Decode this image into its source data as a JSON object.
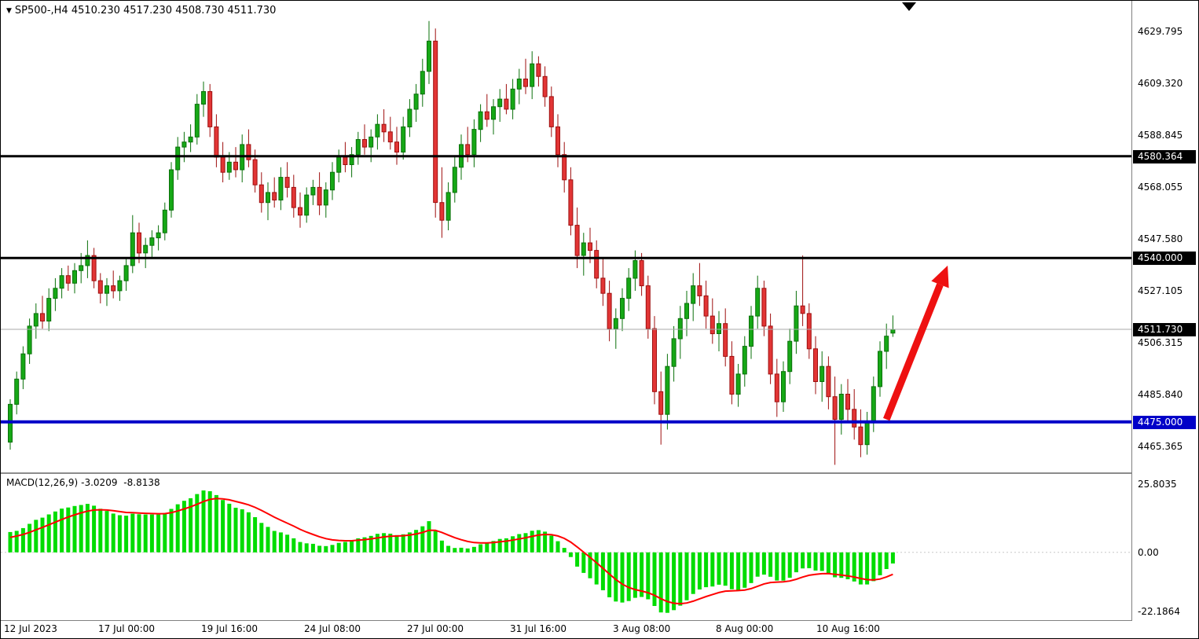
{
  "window": {
    "dropdown_marker": "▼",
    "symbol_timeframe": "SP500-,H4",
    "open": "4510.230",
    "high": "4517.230",
    "low": "4508.730",
    "close": "4511.730"
  },
  "macd_panel": {
    "label": "MACD(12,26,9)",
    "main_value": "-3.0209",
    "signal_value": "-8.8138"
  },
  "colors": {
    "bull": "#16a816",
    "bull_edge": "#0a700a",
    "bear": "#e23535",
    "bear_edge": "#9e0f0f",
    "hline_black": "#000000",
    "support_blue": "#0000c8",
    "current_price_line": "#a8a8a8",
    "macd_hist": "#00dc00",
    "macd_signal": "#ff0000",
    "arrow_red": "#ee1111",
    "badge_current_bg": "#000000"
  },
  "chart_data": {
    "type": "candlestick",
    "symbol": "SP500-",
    "timeframe": "H4",
    "ohlc_current": [
      4510.23,
      4517.23,
      4508.73,
      4511.73
    ],
    "main_pane": {
      "ylim": [
        4455,
        4642
      ],
      "grid_labels": [
        4629.795,
        4609.32,
        4588.845,
        4568.055,
        4547.58,
        4527.105,
        4506.315,
        4485.84,
        4465.365
      ],
      "current_price": 4511.73,
      "hlines": [
        {
          "name": "resistance-line-4580",
          "price": 4580.364,
          "color": "#000000",
          "width": 3
        },
        {
          "name": "resistance-line-4540",
          "price": 4540.0,
          "color": "#000000",
          "width": 3
        },
        {
          "name": "support-line-4475",
          "price": 4475.0,
          "color": "#0000c8",
          "width": 4
        }
      ],
      "candles": [
        [
          4467,
          4484,
          4464,
          4482
        ],
        [
          4482,
          4495,
          4478,
          4492
        ],
        [
          4492,
          4505,
          4488,
          4502
        ],
        [
          4502,
          4516,
          4498,
          4513
        ],
        [
          4513,
          4522,
          4508,
          4518
        ],
        [
          4518,
          4525,
          4512,
          4515
        ],
        [
          4515,
          4528,
          4511,
          4524
        ],
        [
          4524,
          4532,
          4519,
          4528
        ],
        [
          4528,
          4536,
          4524,
          4533
        ],
        [
          4533,
          4537,
          4527,
          4530
        ],
        [
          4530,
          4538,
          4526,
          4535
        ],
        [
          4535,
          4542,
          4530,
          4537
        ],
        [
          4537,
          4547,
          4532,
          4541
        ],
        [
          4541,
          4544,
          4528,
          4531
        ],
        [
          4531,
          4534,
          4522,
          4526
        ],
        [
          4526,
          4532,
          4521,
          4529
        ],
        [
          4529,
          4535,
          4524,
          4527
        ],
        [
          4527,
          4533,
          4523,
          4531
        ],
        [
          4531,
          4540,
          4527,
          4537
        ],
        [
          4537,
          4557,
          4534,
          4550
        ],
        [
          4550,
          4554,
          4538,
          4542
        ],
        [
          4542,
          4548,
          4536,
          4545
        ],
        [
          4545,
          4551,
          4540,
          4548
        ],
        [
          4548,
          4553,
          4543,
          4550
        ],
        [
          4550,
          4562,
          4547,
          4559
        ],
        [
          4559,
          4578,
          4556,
          4575
        ],
        [
          4575,
          4588,
          4571,
          4584
        ],
        [
          4584,
          4590,
          4578,
          4586
        ],
        [
          4586,
          4593,
          4582,
          4588
        ],
        [
          4588,
          4605,
          4585,
          4601
        ],
        [
          4601,
          4610,
          4596,
          4606
        ],
        [
          4606,
          4609,
          4588,
          4592
        ],
        [
          4592,
          4597,
          4576,
          4580
        ],
        [
          4580,
          4586,
          4570,
          4574
        ],
        [
          4574,
          4582,
          4571,
          4578
        ],
        [
          4578,
          4584,
          4572,
          4575
        ],
        [
          4575,
          4589,
          4570,
          4585
        ],
        [
          4585,
          4591,
          4576,
          4579
        ],
        [
          4579,
          4583,
          4566,
          4569
        ],
        [
          4569,
          4574,
          4558,
          4562
        ],
        [
          4562,
          4570,
          4555,
          4566
        ],
        [
          4566,
          4572,
          4560,
          4563
        ],
        [
          4563,
          4576,
          4559,
          4572
        ],
        [
          4572,
          4578,
          4564,
          4568
        ],
        [
          4568,
          4573,
          4556,
          4560
        ],
        [
          4560,
          4566,
          4552,
          4557
        ],
        [
          4557,
          4568,
          4554,
          4565
        ],
        [
          4565,
          4571,
          4561,
          4568
        ],
        [
          4568,
          4574,
          4557,
          4561
        ],
        [
          4561,
          4570,
          4556,
          4567
        ],
        [
          4567,
          4578,
          4563,
          4574
        ],
        [
          4574,
          4583,
          4570,
          4580
        ],
        [
          4580,
          4586,
          4574,
          4577
        ],
        [
          4577,
          4584,
          4572,
          4581
        ],
        [
          4581,
          4590,
          4577,
          4587
        ],
        [
          4587,
          4593,
          4581,
          4584
        ],
        [
          4584,
          4591,
          4578,
          4588
        ],
        [
          4588,
          4597,
          4583,
          4593
        ],
        [
          4593,
          4599,
          4586,
          4590
        ],
        [
          4590,
          4596,
          4583,
          4586
        ],
        [
          4586,
          4592,
          4577,
          4582
        ],
        [
          4582,
          4596,
          4579,
          4592
        ],
        [
          4592,
          4603,
          4588,
          4599
        ],
        [
          4599,
          4609,
          4594,
          4605
        ],
        [
          4605,
          4619,
          4600,
          4614
        ],
        [
          4614,
          4634,
          4609,
          4626
        ],
        [
          4626,
          4631,
          4556,
          4562
        ],
        [
          4562,
          4576,
          4548,
          4555
        ],
        [
          4555,
          4570,
          4551,
          4566
        ],
        [
          4566,
          4580,
          4562,
          4576
        ],
        [
          4576,
          4589,
          4571,
          4585
        ],
        [
          4585,
          4592,
          4578,
          4581
        ],
        [
          4581,
          4595,
          4576,
          4591
        ],
        [
          4591,
          4601,
          4586,
          4598
        ],
        [
          4598,
          4605,
          4592,
          4595
        ],
        [
          4595,
          4603,
          4589,
          4600
        ],
        [
          4600,
          4607,
          4594,
          4603
        ],
        [
          4603,
          4609,
          4597,
          4599
        ],
        [
          4599,
          4611,
          4595,
          4607
        ],
        [
          4607,
          4615,
          4601,
          4611
        ],
        [
          4611,
          4619,
          4605,
          4608
        ],
        [
          4608,
          4622,
          4603,
          4617
        ],
        [
          4617,
          4620,
          4608,
          4612
        ],
        [
          4612,
          4616,
          4600,
          4604
        ],
        [
          4604,
          4608,
          4588,
          4592
        ],
        [
          4592,
          4597,
          4576,
          4581
        ],
        [
          4581,
          4586,
          4566,
          4571
        ],
        [
          4571,
          4576,
          4549,
          4553
        ],
        [
          4553,
          4560,
          4536,
          4541
        ],
        [
          4541,
          4550,
          4533,
          4546
        ],
        [
          4546,
          4552,
          4538,
          4543
        ],
        [
          4543,
          4547,
          4528,
          4532
        ],
        [
          4532,
          4540,
          4521,
          4526
        ],
        [
          4526,
          4531,
          4507,
          4512
        ],
        [
          4512,
          4520,
          4504,
          4516
        ],
        [
          4516,
          4528,
          4511,
          4524
        ],
        [
          4524,
          4536,
          4519,
          4532
        ],
        [
          4532,
          4543,
          4527,
          4539
        ],
        [
          4539,
          4542,
          4525,
          4529
        ],
        [
          4529,
          4533,
          4508,
          4512
        ],
        [
          4512,
          4517,
          4482,
          4487
        ],
        [
          4487,
          4495,
          4466,
          4478
        ],
        [
          4478,
          4502,
          4472,
          4497
        ],
        [
          4497,
          4513,
          4491,
          4508
        ],
        [
          4508,
          4521,
          4500,
          4516
        ],
        [
          4516,
          4527,
          4509,
          4522
        ],
        [
          4522,
          4534,
          4515,
          4529
        ],
        [
          4529,
          4538,
          4521,
          4525
        ],
        [
          4525,
          4531,
          4512,
          4517
        ],
        [
          4517,
          4524,
          4506,
          4510
        ],
        [
          4510,
          4519,
          4503,
          4514
        ],
        [
          4514,
          4520,
          4497,
          4501
        ],
        [
          4501,
          4507,
          4482,
          4486
        ],
        [
          4486,
          4498,
          4481,
          4494
        ],
        [
          4494,
          4509,
          4489,
          4505
        ],
        [
          4505,
          4521,
          4500,
          4517
        ],
        [
          4517,
          4533,
          4512,
          4528
        ],
        [
          4528,
          4531,
          4509,
          4513
        ],
        [
          4513,
          4518,
          4490,
          4494
        ],
        [
          4494,
          4500,
          4477,
          4483
        ],
        [
          4483,
          4499,
          4479,
          4495
        ],
        [
          4495,
          4512,
          4490,
          4507
        ],
        [
          4507,
          4527,
          4502,
          4521
        ],
        [
          4521,
          4541,
          4513,
          4518
        ],
        [
          4518,
          4522,
          4500,
          4504
        ],
        [
          4504,
          4509,
          4486,
          4491
        ],
        [
          4491,
          4503,
          4483,
          4497
        ],
        [
          4497,
          4501,
          4480,
          4485
        ],
        [
          4485,
          4493,
          4458,
          4476
        ],
        [
          4476,
          4490,
          4470,
          4486
        ],
        [
          4486,
          4492,
          4475,
          4480
        ],
        [
          4480,
          4488,
          4468,
          4473
        ],
        [
          4473,
          4480,
          4461,
          4466
        ],
        [
          4466,
          4479,
          4462,
          4475
        ],
        [
          4475,
          4493,
          4471,
          4489
        ],
        [
          4489,
          4507,
          4485,
          4503
        ],
        [
          4503,
          4514,
          4496,
          4509
        ],
        [
          4510.23,
          4517.23,
          4508.73,
          4511.73
        ]
      ]
    },
    "x_ticks": [
      {
        "label": "12 Jul 2023",
        "index": 0
      },
      {
        "label": "17 Jul 00:00",
        "index": 18
      },
      {
        "label": "19 Jul 16:00",
        "index": 34
      },
      {
        "label": "24 Jul 08:00",
        "index": 50
      },
      {
        "label": "27 Jul 00:00",
        "index": 66
      },
      {
        "label": "31 Jul 16:00",
        "index": 82
      },
      {
        "label": "3 Aug 08:00",
        "index": 98
      },
      {
        "label": "8 Aug 00:00",
        "index": 114
      },
      {
        "label": "10 Aug 16:00",
        "index": 130
      }
    ],
    "macd_pane": {
      "params": [
        12,
        26,
        9
      ],
      "ylim": [
        -25.5,
        29.5
      ],
      "scale_labels": [
        {
          "text": "25.8035",
          "value": 25.8035
        },
        {
          "text": "0.00",
          "value": 0
        },
        {
          "text": "-22.1864",
          "value": -22.1864
        }
      ],
      "derivation": "histogram = EMA12(close) - EMA26(close); signal = EMA9(histogram)"
    },
    "annotations": {
      "arrow": {
        "from_index": 136,
        "from_price": 4476,
        "to_index": 145.5,
        "to_price": 4537,
        "color": "#ee1111"
      }
    }
  }
}
